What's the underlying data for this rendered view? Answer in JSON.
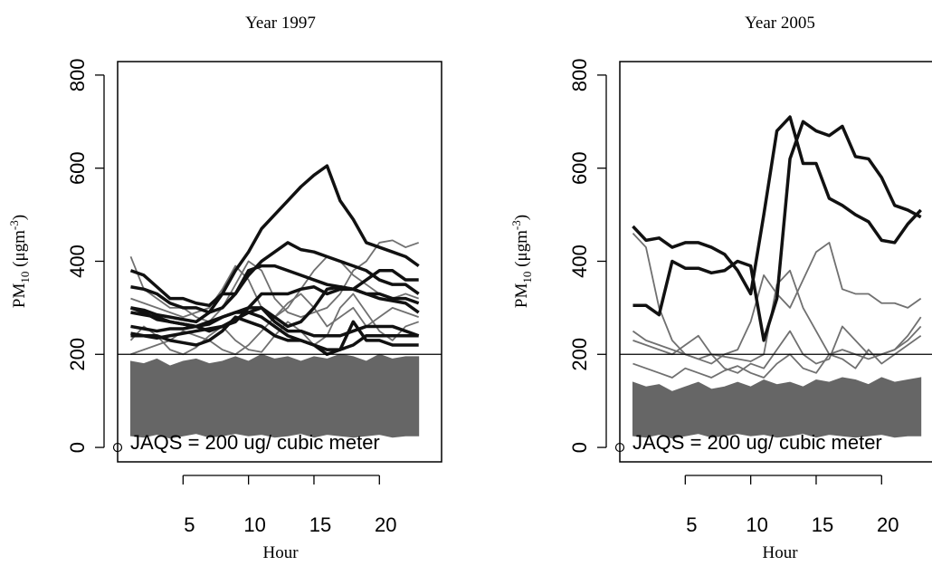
{
  "chart_data": [
    {
      "type": "line",
      "title": "Year 1997",
      "x_label": "Hour",
      "y_label": "PM10 (μgm-3)",
      "annotation": "JAQS = 200 ug/ cubic meter",
      "hline": 200,
      "xlim": [
        0,
        24.75
      ],
      "xticks": [
        5,
        10,
        15,
        20
      ],
      "ylim": [
        -31,
        829
      ],
      "yticks": [
        0,
        200,
        400,
        600,
        800
      ],
      "marker": {
        "x": 0,
        "y": 0
      },
      "x": [
        1,
        2,
        3,
        4,
        5,
        6,
        7,
        8,
        9,
        10,
        11,
        12,
        13,
        14,
        15,
        16,
        17,
        18,
        19,
        20,
        21,
        22,
        23
      ],
      "band": {
        "color": "#666666",
        "high": [
          185,
          180,
          190,
          175,
          185,
          190,
          180,
          185,
          195,
          185,
          200,
          190,
          195,
          185,
          195,
          190,
          200,
          195,
          185,
          200,
          190,
          195,
          195
        ],
        "low": [
          25,
          22,
          28,
          20,
          25,
          30,
          22,
          25,
          30,
          25,
          28,
          22,
          25,
          30,
          22,
          28,
          25,
          22,
          25,
          28,
          22,
          25,
          25
        ]
      },
      "series": [
        {
          "color": "#707070",
          "values": [
            410,
            340,
            320,
            300,
            300,
            280,
            270,
            300,
            350,
            400,
            380,
            320,
            290,
            280,
            290,
            300,
            330,
            380,
            400,
            440,
            445,
            430,
            440
          ]
        },
        {
          "color": "#707070",
          "values": [
            320,
            310,
            300,
            290,
            280,
            290,
            300,
            340,
            390,
            360,
            300,
            280,
            300,
            340,
            380,
            410,
            400,
            370,
            350,
            330,
            320,
            330,
            320
          ]
        },
        {
          "color": "#707070",
          "values": [
            200,
            210,
            220,
            230,
            250,
            240,
            230,
            210,
            200,
            220,
            250,
            280,
            310,
            330,
            300,
            260,
            280,
            300,
            260,
            280,
            300,
            290,
            280
          ]
        },
        {
          "color": "#707070",
          "values": [
            230,
            260,
            240,
            210,
            200,
            215,
            240,
            260,
            230,
            210,
            205,
            240,
            270,
            250,
            220,
            240,
            300,
            330,
            290,
            250,
            230,
            260,
            270
          ]
        },
        {
          "color": "#111111",
          "values": [
            300,
            295,
            285,
            280,
            275,
            270,
            290,
            330,
            380,
            420,
            470,
            500,
            530,
            560,
            585,
            605,
            530,
            490,
            440,
            430,
            420,
            410,
            390
          ]
        },
        {
          "color": "#111111",
          "values": [
            380,
            370,
            345,
            320,
            320,
            310,
            305,
            330,
            330,
            370,
            400,
            420,
            440,
            425,
            420,
            410,
            400,
            390,
            380,
            360,
            350,
            350,
            330
          ]
        },
        {
          "color": "#111111",
          "values": [
            345,
            340,
            330,
            310,
            300,
            300,
            290,
            300,
            330,
            380,
            390,
            390,
            380,
            370,
            360,
            350,
            345,
            340,
            360,
            380,
            380,
            360,
            360
          ]
        },
        {
          "color": "#111111",
          "values": [
            290,
            285,
            280,
            270,
            265,
            260,
            265,
            280,
            290,
            300,
            330,
            330,
            330,
            340,
            345,
            330,
            340,
            340,
            330,
            330,
            320,
            320,
            310
          ]
        },
        {
          "color": "#111111",
          "values": [
            260,
            255,
            250,
            255,
            255,
            260,
            270,
            280,
            290,
            290,
            280,
            260,
            240,
            230,
            220,
            210,
            210,
            220,
            240,
            240,
            240,
            240,
            240
          ]
        },
        {
          "color": "#111111",
          "values": [
            240,
            240,
            240,
            230,
            225,
            220,
            230,
            250,
            280,
            270,
            260,
            240,
            230,
            230,
            220,
            200,
            210,
            270,
            230,
            230,
            220,
            220,
            220
          ]
        },
        {
          "color": "#111111",
          "values": [
            245,
            240,
            235,
            240,
            245,
            250,
            255,
            260,
            270,
            300,
            300,
            280,
            260,
            270,
            300,
            340,
            345,
            340,
            330,
            320,
            315,
            310,
            290
          ]
        },
        {
          "color": "#111111",
          "values": [
            300,
            290,
            275,
            270,
            265,
            260,
            250,
            260,
            275,
            290,
            300,
            270,
            250,
            250,
            240,
            240,
            240,
            250,
            260,
            260,
            260,
            250,
            240
          ]
        }
      ]
    },
    {
      "type": "line",
      "title": "Year 2005",
      "x_label": "Hour",
      "y_label": "PM10 (μgm-3)",
      "annotation": "JAQS = 200 ug/ cubic meter",
      "hline": 200,
      "xlim": [
        0,
        24.75
      ],
      "xticks": [
        5,
        10,
        15,
        20
      ],
      "ylim": [
        -31,
        829
      ],
      "yticks": [
        0,
        200,
        400,
        600,
        800
      ],
      "marker": {
        "x": 0,
        "y": 0
      },
      "x": [
        1,
        2,
        3,
        4,
        5,
        6,
        7,
        8,
        9,
        10,
        11,
        12,
        13,
        14,
        15,
        16,
        17,
        18,
        19,
        20,
        21,
        22,
        23
      ],
      "band": {
        "color": "#666666",
        "high": [
          140,
          130,
          135,
          120,
          130,
          140,
          125,
          130,
          140,
          130,
          145,
          135,
          140,
          130,
          145,
          140,
          150,
          145,
          135,
          150,
          140,
          145,
          150
        ],
        "low": [
          25,
          22,
          28,
          20,
          25,
          30,
          22,
          25,
          30,
          25,
          28,
          22,
          25,
          30,
          22,
          28,
          25,
          22,
          25,
          28,
          22,
          25,
          25
        ]
      },
      "series": [
        {
          "color": "#707070",
          "values": [
            460,
            430,
            300,
            230,
            200,
            190,
            180,
            200,
            210,
            270,
            370,
            330,
            300,
            360,
            420,
            440,
            340,
            330,
            330,
            310,
            310,
            300,
            320
          ]
        },
        {
          "color": "#707070",
          "values": [
            250,
            230,
            220,
            210,
            200,
            190,
            200,
            195,
            190,
            185,
            200,
            350,
            380,
            300,
            250,
            200,
            210,
            200,
            190,
            200,
            210,
            240,
            280
          ]
        },
        {
          "color": "#707070",
          "values": [
            230,
            220,
            210,
            200,
            220,
            240,
            200,
            170,
            160,
            180,
            170,
            210,
            250,
            200,
            180,
            190,
            260,
            230,
            200,
            200,
            210,
            230,
            260
          ]
        },
        {
          "color": "#707070",
          "values": [
            180,
            170,
            160,
            150,
            170,
            160,
            150,
            165,
            175,
            160,
            150,
            180,
            200,
            170,
            160,
            200,
            190,
            170,
            210,
            180,
            200,
            220,
            240
          ]
        },
        {
          "color": "#111111",
          "values": [
            475,
            445,
            450,
            430,
            440,
            440,
            430,
            415,
            380,
            330,
            500,
            680,
            710,
            610,
            610,
            535,
            520,
            500,
            485,
            445,
            440,
            480,
            510
          ]
        },
        {
          "color": "#111111",
          "values": [
            305,
            305,
            285,
            400,
            385,
            385,
            375,
            380,
            400,
            390,
            230,
            320,
            620,
            700,
            680,
            670,
            690,
            625,
            620,
            580,
            520,
            510,
            495
          ]
        }
      ]
    }
  ]
}
